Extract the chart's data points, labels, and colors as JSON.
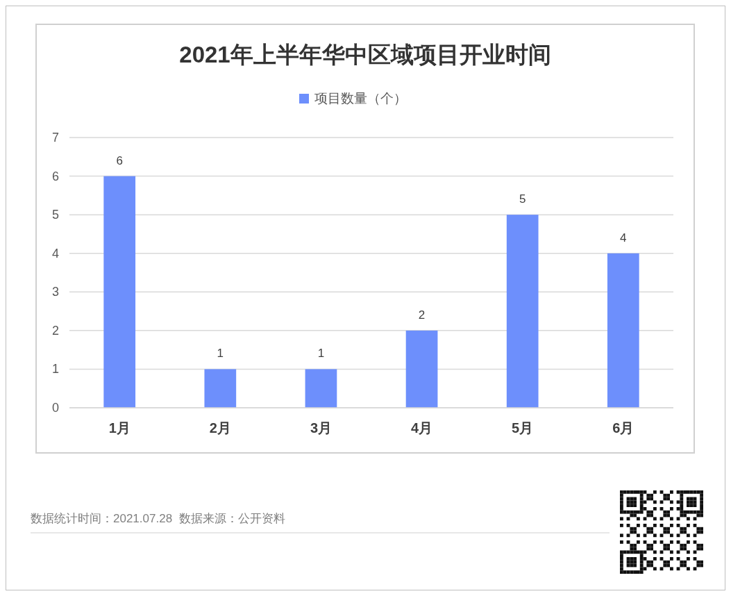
{
  "chart_data": {
    "type": "bar",
    "title": "2021年上半年华中区域项目开业时间",
    "categories": [
      "1月",
      "2月",
      "3月",
      "4月",
      "5月",
      "6月"
    ],
    "series": [
      {
        "name": "项目数量（个）",
        "color": "#6d8ffc",
        "values": [
          6,
          1,
          1,
          2,
          5,
          4
        ]
      }
    ],
    "ylim": [
      0,
      7
    ],
    "yticks": [
      0,
      1,
      2,
      3,
      4,
      5,
      6,
      7
    ],
    "grid": "y",
    "legend": "top",
    "data_labels": true,
    "annotations": [
      "数据统计时间：2021.07.28  数据来源：公开资料"
    ]
  }
}
